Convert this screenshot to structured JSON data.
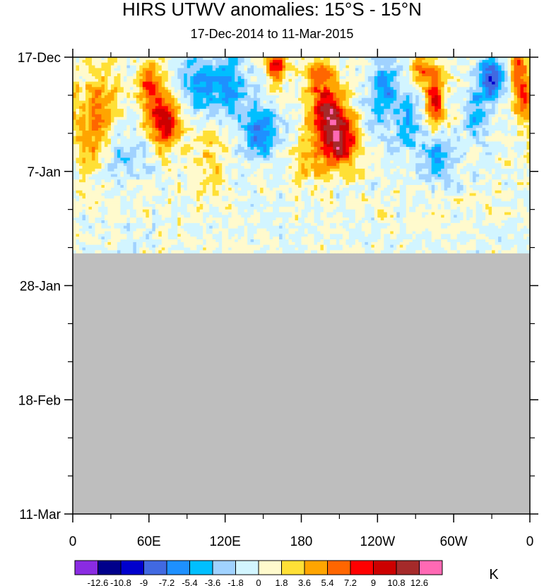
{
  "chart_data": {
    "type": "heatmap",
    "title": "HIRS UTWV anomalies: 15°S - 15°N",
    "subtitle": "17-Dec-2014 to 11-Mar-2015",
    "xlabel": "",
    "ylabel": "",
    "x_tick_labels": [
      "0",
      "60E",
      "120E",
      "180",
      "120W",
      "60W",
      "0"
    ],
    "x_tick_values_deg_east": [
      0,
      60,
      120,
      180,
      240,
      300,
      360
    ],
    "y_tick_labels": [
      "17-Dec",
      "7-Jan",
      "28-Jan",
      "18-Feb",
      "11-Mar"
    ],
    "y_tick_values_days": [
      0,
      21,
      42,
      63,
      84
    ],
    "xlim": [
      0,
      360
    ],
    "ylim_dates": [
      "17-Dec-2014",
      "11-Mar-2015"
    ],
    "data_end_date": "22-Jan-2015",
    "missing_color": "#bebebe",
    "colorbar": {
      "unit": "K",
      "levels": [
        "-12.6",
        "-10.8",
        "-9",
        "-7.2",
        "-5.4",
        "-3.6",
        "-1.8",
        "0",
        "1.8",
        "3.6",
        "5.4",
        "7.2",
        "9",
        "10.8",
        "12.6"
      ],
      "colors": [
        "#8a2be2",
        "#00008b",
        "#0000cd",
        "#4169e1",
        "#1e90ff",
        "#00bfff",
        "#a0d2ff",
        "#d2f5ff",
        "#fffacd",
        "#ffe036",
        "#ffa500",
        "#ff6600",
        "#ff0000",
        "#cd0000",
        "#a52a2a",
        "#ff69b4"
      ]
    },
    "anomaly_features": [
      {
        "lon": 72,
        "day": 11.5,
        "value": 11,
        "sigma_lon": 8,
        "sigma_day": 3.5
      },
      {
        "lon": 60,
        "day": 5,
        "value": 7.5,
        "sigma_lon": 6,
        "sigma_day": 3
      },
      {
        "lon": 22,
        "day": 7,
        "value": 4,
        "sigma_lon": 10,
        "sigma_day": 4
      },
      {
        "lon": 15,
        "day": 15,
        "value": 5,
        "sigma_lon": 10,
        "sigma_day": 4
      },
      {
        "lon": 102,
        "day": 5,
        "value": -6,
        "sigma_lon": 12,
        "sigma_day": 4
      },
      {
        "lon": 125,
        "day": 6,
        "value": -4,
        "sigma_lon": 10,
        "sigma_day": 5
      },
      {
        "lon": 147,
        "day": 14,
        "value": -8,
        "sigma_lon": 9,
        "sigma_day": 3
      },
      {
        "lon": 160,
        "day": 1.5,
        "value": 8,
        "sigma_lon": 6,
        "sigma_day": 2
      },
      {
        "lon": 201,
        "day": 10.5,
        "value": 10,
        "sigma_lon": 9,
        "sigma_day": 3
      },
      {
        "lon": 195,
        "day": 4,
        "value": 6,
        "sigma_lon": 8,
        "sigma_day": 3
      },
      {
        "lon": 210,
        "day": 15.5,
        "value": 11,
        "sigma_lon": 10,
        "sigma_day": 3.5
      },
      {
        "lon": 185,
        "day": 19,
        "value": 4,
        "sigma_lon": 8,
        "sigma_day": 3
      },
      {
        "lon": 245,
        "day": 6,
        "value": -6,
        "sigma_lon": 8,
        "sigma_day": 4
      },
      {
        "lon": 265,
        "day": 13,
        "value": -4,
        "sigma_lon": 8,
        "sigma_day": 4
      },
      {
        "lon": 285,
        "day": 8.5,
        "value": 9,
        "sigma_lon": 5,
        "sigma_day": 4
      },
      {
        "lon": 275,
        "day": 2,
        "value": 6,
        "sigma_lon": 6,
        "sigma_day": 2
      },
      {
        "lon": 287,
        "day": 18,
        "value": -6,
        "sigma_lon": 8,
        "sigma_day": 3
      },
      {
        "lon": 330,
        "day": 4,
        "value": -9,
        "sigma_lon": 7,
        "sigma_day": 3
      },
      {
        "lon": 318,
        "day": 10.5,
        "value": -5,
        "sigma_lon": 6,
        "sigma_day": 3
      },
      {
        "lon": 350,
        "day": 2,
        "value": 6,
        "sigma_lon": 6,
        "sigma_day": 3
      },
      {
        "lon": 355,
        "day": 8,
        "value": 7,
        "sigma_lon": 5,
        "sigma_day": 3
      },
      {
        "lon": 40,
        "day": 18,
        "value": -3,
        "sigma_lon": 12,
        "sigma_day": 3
      },
      {
        "lon": 108,
        "day": 17,
        "value": 3,
        "sigma_lon": 12,
        "sigma_day": 4
      }
    ]
  }
}
